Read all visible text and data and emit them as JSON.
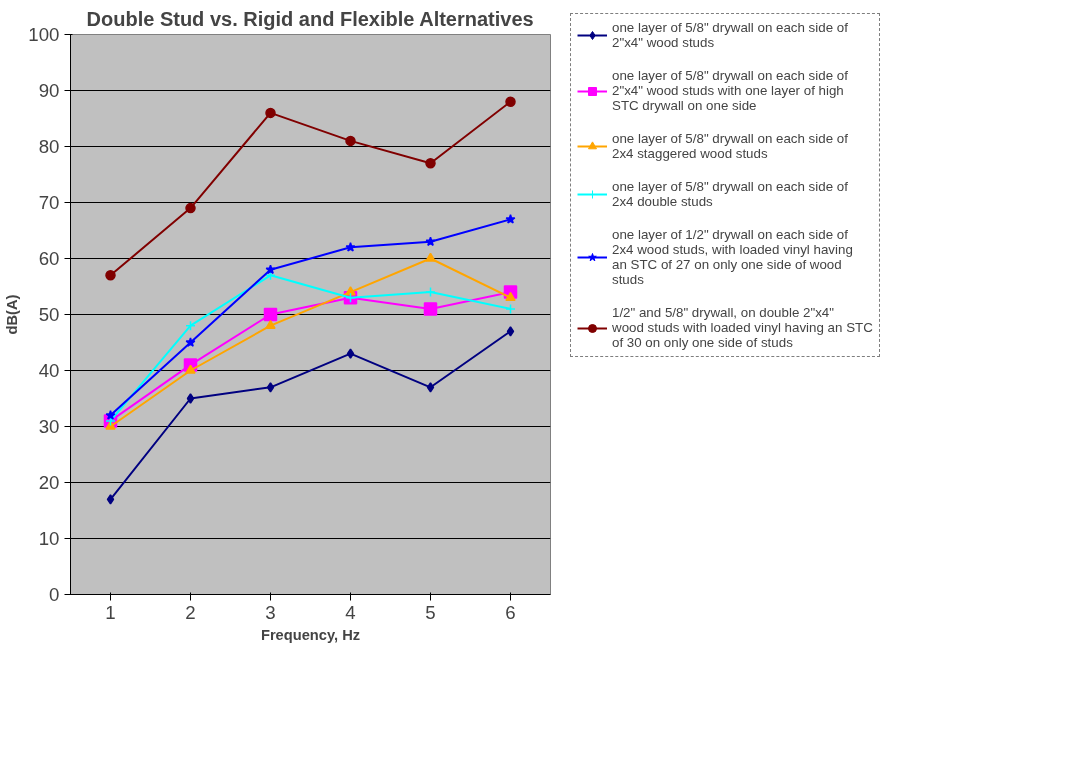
{
  "chart_data": {
    "type": "line",
    "title": "Double Stud vs. Rigid and Flexible Alternatives",
    "xlabel": "Frequency, Hz",
    "ylabel": "dB(A)",
    "categories": [
      "1",
      "2",
      "3",
      "4",
      "5",
      "6"
    ],
    "ylim": [
      0,
      100
    ],
    "yticks": [
      0,
      10,
      20,
      30,
      40,
      50,
      60,
      70,
      80,
      90,
      100
    ],
    "grid": "y",
    "legend": "right",
    "series": [
      {
        "name": "one layer of 5/8\" drywall on each side of 2\"x4\" wood studs",
        "color": "#000080",
        "marker": "diamond",
        "values": [
          17,
          35,
          37,
          43,
          37,
          47
        ]
      },
      {
        "name": "one layer of 5/8\" drywall on each side of 2\"x4\" wood studs with one layer of high STC drywall on one side",
        "color": "#ff00ff",
        "marker": "square",
        "values": [
          31,
          41,
          50,
          53,
          51,
          54
        ]
      },
      {
        "name": "one layer of 5/8\" drywall on each side of 2x4 staggered wood studs",
        "color": "#ffa500",
        "marker": "triangle",
        "values": [
          30,
          40,
          48,
          54,
          60,
          53
        ]
      },
      {
        "name": "one layer of 5/8\" drywall on each side of 2x4 double studs",
        "color": "#00ffff",
        "marker": "cross",
        "values": [
          31,
          48,
          57,
          53,
          54,
          51
        ]
      },
      {
        "name": "one layer of 1/2\" drywall on each side of 2x4 wood studs, with loaded vinyl having an STC of 27 on only one side of wood studs",
        "color": "#0000ff",
        "marker": "star",
        "values": [
          32,
          45,
          58,
          62,
          63,
          67
        ]
      },
      {
        "name": "1/2\" and 5/8\" drywall, on double 2\"x4\" wood studs with loaded vinyl having an STC of 30 on only one side of studs",
        "color": "#800000",
        "marker": "circle",
        "values": [
          57,
          69,
          86,
          81,
          77,
          88
        ]
      }
    ]
  }
}
